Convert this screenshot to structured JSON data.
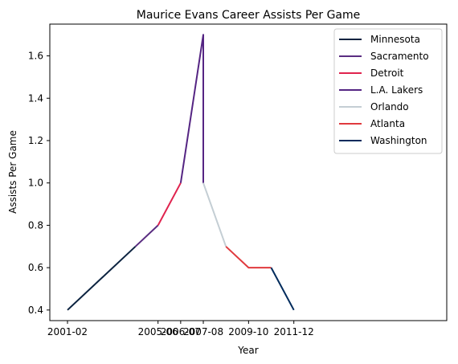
{
  "chart_data": {
    "type": "line",
    "title": "Maurice Evans  Career Assists Per Game",
    "xlabel": "Year",
    "ylabel": "Assists Per Game",
    "x_ticks": [
      "2001-02",
      "2005-06",
      "2006-07",
      "2007-08",
      "2009-10",
      "2011-12"
    ],
    "y_ticks": [
      "0.4",
      "0.6",
      "0.8",
      "1.0",
      "1.2",
      "1.4",
      "1.6"
    ],
    "ylim": [
      0.35,
      1.75
    ],
    "legend_position": "top-right",
    "grid": false,
    "series": [
      {
        "name": "Minnesota",
        "color": "#0c2340",
        "points": [
          [
            "2001-02",
            0.4
          ],
          [
            "2004-05",
            0.7
          ]
        ]
      },
      {
        "name": "Sacramento",
        "color": "#5a2d81",
        "points": [
          [
            "2004-05",
            0.7
          ],
          [
            "2005-06",
            0.8
          ]
        ]
      },
      {
        "name": "Detroit",
        "color": "#e0234e",
        "points": [
          [
            "2005-06",
            0.8
          ],
          [
            "2006-07",
            1.0
          ]
        ]
      },
      {
        "name": "L.A. Lakers",
        "color": "#552583",
        "points": [
          [
            "2006-07",
            1.0
          ],
          [
            "2007-08",
            1.7
          ],
          [
            "2007-08",
            1.0
          ]
        ]
      },
      {
        "name": "Orlando",
        "color": "#c4ced4",
        "points": [
          [
            "2007-08",
            1.0
          ],
          [
            "2008-09",
            0.7
          ]
        ]
      },
      {
        "name": "Atlanta",
        "color": "#e03a3e",
        "points": [
          [
            "2008-09",
            0.7
          ],
          [
            "2009-10",
            0.6
          ],
          [
            "2010-11",
            0.6
          ]
        ]
      },
      {
        "name": "Washington",
        "color": "#002b5c",
        "points": [
          [
            "2010-11",
            0.6
          ],
          [
            "2011-12",
            0.4
          ]
        ]
      }
    ]
  }
}
